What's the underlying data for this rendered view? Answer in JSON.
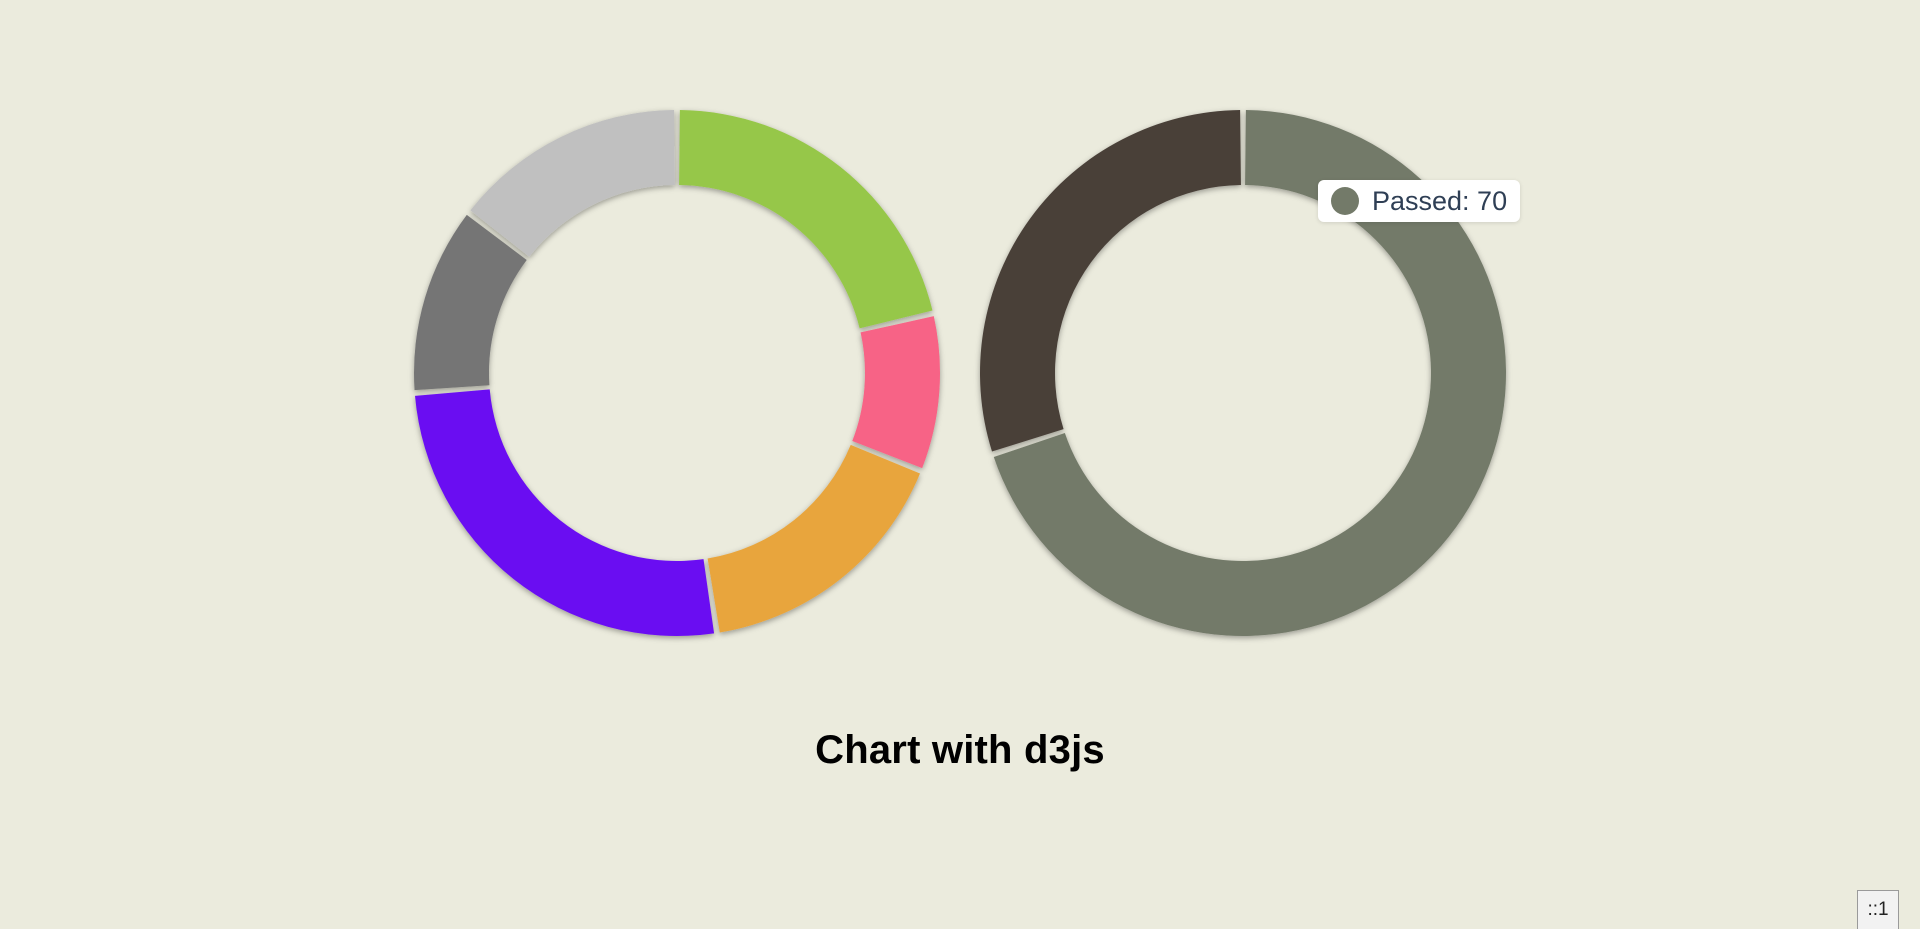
{
  "title": "Chart with d3js",
  "host_badge": "::1",
  "tooltip": {
    "label": "Passed: 70",
    "color": "#737a69"
  },
  "chart_data": [
    {
      "type": "pie",
      "variant": "donut",
      "values": [
        22,
        10,
        17,
        27,
        12,
        15
      ],
      "colors": [
        "#96c74a",
        "#f76486",
        "#e8a53e",
        "#6a0ef2",
        "#757575",
        "#c0c0c0"
      ],
      "start": "12 o'clock",
      "direction": "clockwise"
    },
    {
      "type": "pie",
      "variant": "donut",
      "values": [
        70,
        30
      ],
      "colors": [
        "#737a69",
        "#4a4039"
      ],
      "start": "12 o'clock",
      "direction": "clockwise"
    }
  ]
}
